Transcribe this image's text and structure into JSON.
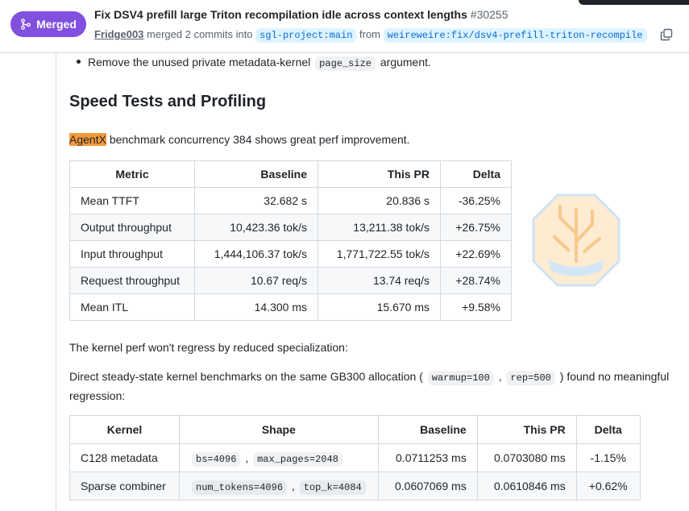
{
  "header": {
    "status": "Merged",
    "title": "Fix DSV4 prefill large Triton recompilation idle across context lengths",
    "number": "#30255",
    "author": "Fridge003",
    "action": "merged 2 commits into",
    "base": "sgl-project:main",
    "from": "from",
    "head": "weireweire:fix/dsv4-prefill-triton-recompile"
  },
  "body": {
    "bullet": [
      {
        "text": "Remove the unused private metadata-kernel"
      },
      {
        "code": "page_size"
      },
      {
        "text": "argument."
      }
    ],
    "heading": "Speed Tests and Profiling",
    "intro": [
      {
        "mark": "AgentX"
      },
      {
        "text": "benchmark concurrency 384 shows great perf improvement."
      }
    ],
    "table1": {
      "columns": [
        "Metric",
        "Baseline",
        "This PR",
        "Delta"
      ],
      "rows": [
        [
          "Mean TTFT",
          "32.682 s",
          "20.836 s",
          "-36.25%"
        ],
        [
          "Output throughput",
          "10,423.36 tok/s",
          "13,211.38 tok/s",
          "+26.75%"
        ],
        [
          "Input throughput",
          "1,444,106.37 tok/s",
          "1,771,722.55 tok/s",
          "+22.69%"
        ],
        [
          "Request throughput",
          "10.67 req/s",
          "13.74 req/s",
          "+28.74%"
        ],
        [
          "Mean ITL",
          "14.300 ms",
          "15.670 ms",
          "+9.58%"
        ]
      ]
    },
    "para1": "The kernel perf won't regress by reduced specialization:",
    "para2": [
      {
        "text": "Direct steady-state kernel benchmarks on the same GB300 allocation ("
      },
      {
        "code": "warmup=100"
      },
      {
        "text": ","
      },
      {
        "code": "rep=500"
      },
      {
        "text": ") found no meaningful regression:"
      }
    ],
    "table2": {
      "columns": [
        "Kernel",
        "Shape",
        "Baseline",
        "This PR",
        "Delta"
      ],
      "rows": [
        [
          "C128 metadata",
          [
            {
              "code": "bs=4096"
            },
            {
              "text": ","
            },
            {
              "code": "max_pages=2048"
            }
          ],
          "0.0711253 ms",
          "0.0703080 ms",
          "-1.15%"
        ],
        [
          "Sparse combiner",
          [
            {
              "code": "num_tokens=4096"
            },
            {
              "text": ","
            },
            {
              "code": "top_k=4084"
            }
          ],
          "0.0607069 ms",
          "0.0610846 ms",
          "+0.62%"
        ]
      ]
    }
  }
}
